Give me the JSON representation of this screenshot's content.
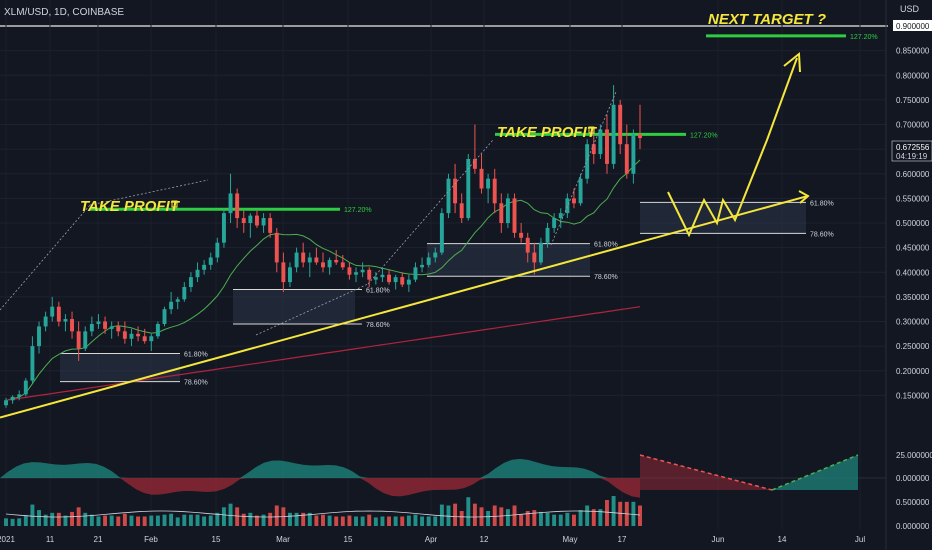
{
  "header": {
    "symbol_line": "XLM/USD, 1D, COINBASE",
    "currency": "USD"
  },
  "annotations": {
    "next_target": "NEXT TARGET ?",
    "take_profit_1": "TAKE PROFIT ",
    "take_profit_2": "TAKE PROFIT "
  },
  "colors": {
    "background": "#131722",
    "up": "#26a69a",
    "down": "#ef5350",
    "trendline": "#f5e63b",
    "target_line": "#2ecc40",
    "ma_fast": "#4caf50",
    "ma_slow": "#b0243e"
  },
  "chart_data": {
    "type": "candlestick",
    "y_axis": {
      "min": 0.1,
      "max": 0.9,
      "ticks": [
        "0.900000",
        "0.850000",
        "0.800000",
        "0.750000",
        "0.700000",
        "0.650000",
        "0.600000",
        "0.550000",
        "0.500000",
        "0.450000",
        "0.400000",
        "0.350000",
        "0.300000",
        "0.250000",
        "0.200000",
        "0.150000"
      ]
    },
    "x_axis": {
      "ticks": [
        "2021",
        "11",
        "21",
        "Feb",
        "15",
        "Mar",
        "15",
        "Apr",
        "12",
        "May",
        "17",
        "Jun",
        "14",
        "Jul"
      ]
    },
    "last_price": "0.672556",
    "countdown": "04:19:19",
    "fib_levels": [
      {
        "label": "127.20%",
        "value": 0.528
      },
      {
        "label": "61.80%",
        "value": 0.235
      },
      {
        "label": "78.60%",
        "value": 0.178
      },
      {
        "label": "61.80%",
        "value": 0.365
      },
      {
        "label": "78.60%",
        "value": 0.295
      },
      {
        "label": "127.20%",
        "value": 0.68
      },
      {
        "label": "61.80%",
        "value": 0.458
      },
      {
        "label": "78.60%",
        "value": 0.392
      },
      {
        "label": "61.80%",
        "value": 0.542
      },
      {
        "label": "78.60%",
        "value": 0.479
      },
      {
        "label": "127.20%",
        "value": 0.88
      }
    ],
    "oscillator": {
      "ticks": [
        "25.000000",
        "0.000000"
      ]
    },
    "volume": {
      "ticks": [
        "0.500000",
        "0.000000"
      ]
    },
    "candles_ohlc": [
      [
        0.13,
        0.145,
        0.125,
        0.14
      ],
      [
        0.14,
        0.15,
        0.133,
        0.147
      ],
      [
        0.147,
        0.16,
        0.14,
        0.152
      ],
      [
        0.152,
        0.185,
        0.148,
        0.18
      ],
      [
        0.18,
        0.27,
        0.175,
        0.25
      ],
      [
        0.25,
        0.3,
        0.235,
        0.29
      ],
      [
        0.29,
        0.32,
        0.28,
        0.31
      ],
      [
        0.31,
        0.35,
        0.3,
        0.33
      ],
      [
        0.33,
        0.34,
        0.29,
        0.3
      ],
      [
        0.3,
        0.315,
        0.28,
        0.305
      ],
      [
        0.305,
        0.32,
        0.265,
        0.28
      ],
      [
        0.28,
        0.3,
        0.22,
        0.245
      ],
      [
        0.245,
        0.29,
        0.24,
        0.28
      ],
      [
        0.28,
        0.31,
        0.27,
        0.295
      ],
      [
        0.295,
        0.315,
        0.285,
        0.3
      ],
      [
        0.3,
        0.31,
        0.275,
        0.285
      ],
      [
        0.285,
        0.3,
        0.265,
        0.29
      ],
      [
        0.29,
        0.3,
        0.27,
        0.28
      ],
      [
        0.28,
        0.3,
        0.255,
        0.265
      ],
      [
        0.265,
        0.285,
        0.25,
        0.275
      ],
      [
        0.275,
        0.29,
        0.26,
        0.27
      ],
      [
        0.27,
        0.285,
        0.255,
        0.26
      ],
      [
        0.26,
        0.275,
        0.24,
        0.27
      ],
      [
        0.27,
        0.3,
        0.265,
        0.295
      ],
      [
        0.295,
        0.33,
        0.29,
        0.325
      ],
      [
        0.325,
        0.36,
        0.315,
        0.34
      ],
      [
        0.34,
        0.35,
        0.325,
        0.345
      ],
      [
        0.345,
        0.38,
        0.34,
        0.37
      ],
      [
        0.37,
        0.4,
        0.36,
        0.39
      ],
      [
        0.39,
        0.42,
        0.38,
        0.405
      ],
      [
        0.405,
        0.425,
        0.395,
        0.415
      ],
      [
        0.415,
        0.44,
        0.405,
        0.43
      ],
      [
        0.43,
        0.47,
        0.42,
        0.46
      ],
      [
        0.46,
        0.53,
        0.45,
        0.52
      ],
      [
        0.52,
        0.6,
        0.5,
        0.56
      ],
      [
        0.56,
        0.57,
        0.49,
        0.51
      ],
      [
        0.51,
        0.525,
        0.48,
        0.5
      ],
      [
        0.5,
        0.52,
        0.47,
        0.515
      ],
      [
        0.515,
        0.525,
        0.49,
        0.495
      ],
      [
        0.495,
        0.52,
        0.48,
        0.51
      ],
      [
        0.51,
        0.52,
        0.47,
        0.48
      ],
      [
        0.48,
        0.49,
        0.4,
        0.42
      ],
      [
        0.42,
        0.44,
        0.36,
        0.38
      ],
      [
        0.38,
        0.42,
        0.37,
        0.41
      ],
      [
        0.41,
        0.45,
        0.4,
        0.44
      ],
      [
        0.44,
        0.46,
        0.41,
        0.42
      ],
      [
        0.42,
        0.44,
        0.39,
        0.43
      ],
      [
        0.43,
        0.45,
        0.415,
        0.42
      ],
      [
        0.42,
        0.44,
        0.4,
        0.41
      ],
      [
        0.41,
        0.43,
        0.395,
        0.425
      ],
      [
        0.425,
        0.445,
        0.415,
        0.42
      ],
      [
        0.42,
        0.435,
        0.405,
        0.41
      ],
      [
        0.41,
        0.42,
        0.385,
        0.395
      ],
      [
        0.395,
        0.41,
        0.38,
        0.4
      ],
      [
        0.4,
        0.42,
        0.39,
        0.405
      ],
      [
        0.405,
        0.41,
        0.37,
        0.385
      ],
      [
        0.385,
        0.4,
        0.375,
        0.39
      ],
      [
        0.39,
        0.41,
        0.38,
        0.395
      ],
      [
        0.395,
        0.405,
        0.375,
        0.38
      ],
      [
        0.38,
        0.395,
        0.365,
        0.39
      ],
      [
        0.39,
        0.4,
        0.37,
        0.375
      ],
      [
        0.375,
        0.395,
        0.36,
        0.385
      ],
      [
        0.385,
        0.42,
        0.38,
        0.41
      ],
      [
        0.41,
        0.43,
        0.4,
        0.415
      ],
      [
        0.415,
        0.44,
        0.41,
        0.43
      ],
      [
        0.43,
        0.45,
        0.42,
        0.44
      ],
      [
        0.44,
        0.53,
        0.435,
        0.52
      ],
      [
        0.52,
        0.6,
        0.51,
        0.59
      ],
      [
        0.59,
        0.62,
        0.52,
        0.54
      ],
      [
        0.54,
        0.56,
        0.5,
        0.51
      ],
      [
        0.51,
        0.64,
        0.505,
        0.63
      ],
      [
        0.63,
        0.7,
        0.6,
        0.61
      ],
      [
        0.61,
        0.64,
        0.56,
        0.57
      ],
      [
        0.57,
        0.6,
        0.54,
        0.59
      ],
      [
        0.59,
        0.61,
        0.52,
        0.54
      ],
      [
        0.54,
        0.56,
        0.48,
        0.5
      ],
      [
        0.5,
        0.56,
        0.49,
        0.55
      ],
      [
        0.55,
        0.56,
        0.47,
        0.48
      ],
      [
        0.48,
        0.5,
        0.46,
        0.47
      ],
      [
        0.47,
        0.48,
        0.42,
        0.44
      ],
      [
        0.44,
        0.46,
        0.395,
        0.42
      ],
      [
        0.42,
        0.47,
        0.415,
        0.46
      ],
      [
        0.46,
        0.5,
        0.45,
        0.49
      ],
      [
        0.49,
        0.52,
        0.48,
        0.51
      ],
      [
        0.51,
        0.53,
        0.49,
        0.52
      ],
      [
        0.52,
        0.56,
        0.51,
        0.55
      ],
      [
        0.55,
        0.57,
        0.53,
        0.54
      ],
      [
        0.54,
        0.6,
        0.535,
        0.59
      ],
      [
        0.59,
        0.67,
        0.58,
        0.66
      ],
      [
        0.66,
        0.69,
        0.62,
        0.64
      ],
      [
        0.64,
        0.7,
        0.63,
        0.69
      ],
      [
        0.69,
        0.72,
        0.6,
        0.62
      ],
      [
        0.62,
        0.78,
        0.61,
        0.74
      ],
      [
        0.74,
        0.75,
        0.64,
        0.66
      ],
      [
        0.66,
        0.7,
        0.59,
        0.6
      ],
      [
        0.6,
        0.69,
        0.58,
        0.68
      ],
      [
        0.68,
        0.74,
        0.65,
        0.672556
      ]
    ]
  }
}
